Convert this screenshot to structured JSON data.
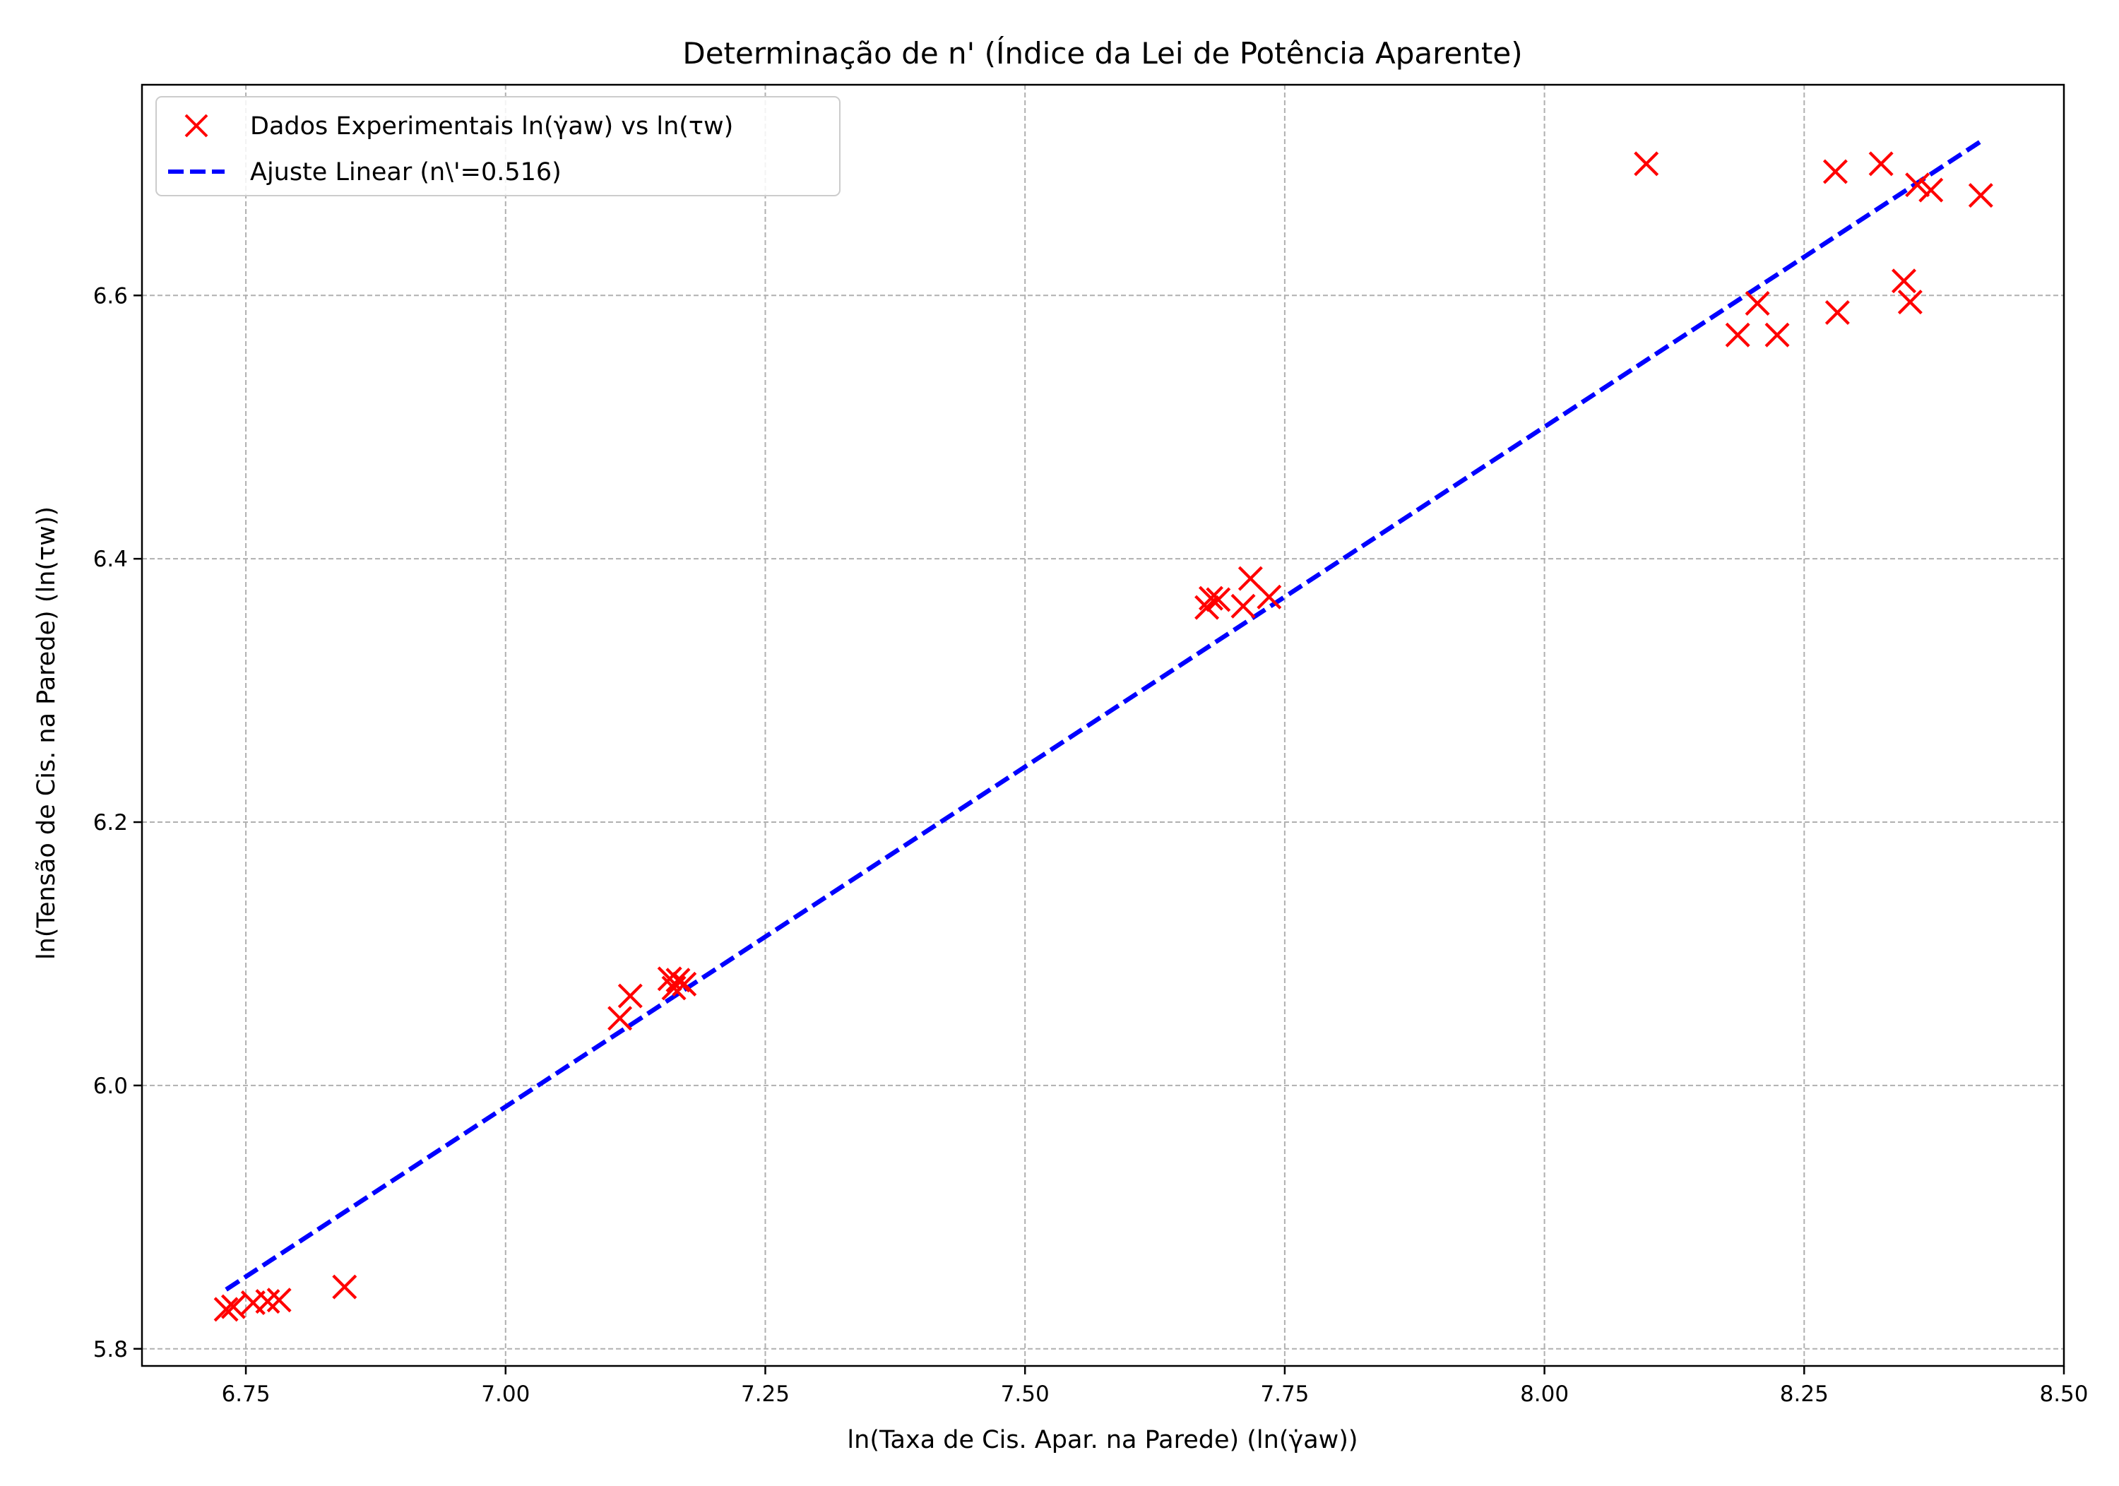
{
  "chart_data": {
    "type": "scatter",
    "title": "Determinação de n' (Índice da Lei de Potência Aparente)",
    "xlabel": "ln(Taxa de Cis. Apar. na Parede) (ln(γ̇aw))",
    "ylabel": "ln(Tensão de Cis. na Parede) (ln(τw))",
    "xlim": [
      6.65,
      8.5
    ],
    "ylim": [
      5.787,
      6.76
    ],
    "xticks": [
      6.75,
      7.0,
      7.25,
      7.5,
      7.75,
      8.0,
      8.25,
      8.5
    ],
    "xtick_labels": [
      "6.75",
      "7.00",
      "7.25",
      "7.50",
      "7.75",
      "8.00",
      "8.25",
      "8.50"
    ],
    "yticks": [
      5.8,
      6.0,
      6.2,
      6.4,
      6.6
    ],
    "ytick_labels": [
      "5.8",
      "6.0",
      "6.2",
      "6.4",
      "6.6"
    ],
    "grid": true,
    "legend_position": "top-left",
    "series": [
      {
        "name": "Dados Experimentais ln(γ̇aw) vs ln(τw)",
        "kind": "scatter",
        "marker": "x",
        "color": "#ff0000",
        "points": [
          [
            6.731,
            5.83
          ],
          [
            6.738,
            5.832
          ],
          [
            6.757,
            5.835
          ],
          [
            6.771,
            5.836
          ],
          [
            6.782,
            5.837
          ],
          [
            6.845,
            5.847
          ],
          [
            7.11,
            6.051
          ],
          [
            7.12,
            6.068
          ],
          [
            7.158,
            6.081
          ],
          [
            7.162,
            6.074
          ],
          [
            7.166,
            6.08
          ],
          [
            7.172,
            6.077
          ],
          [
            7.675,
            6.363
          ],
          [
            7.679,
            6.37
          ],
          [
            7.686,
            6.369
          ],
          [
            7.71,
            6.364
          ],
          [
            7.717,
            6.385
          ],
          [
            7.735,
            6.371
          ],
          [
            8.098,
            6.7
          ],
          [
            8.186,
            6.57
          ],
          [
            8.205,
            6.594
          ],
          [
            8.224,
            6.57
          ],
          [
            8.28,
            6.694
          ],
          [
            8.282,
            6.587
          ],
          [
            8.324,
            6.7
          ],
          [
            8.346,
            6.611
          ],
          [
            8.352,
            6.595
          ],
          [
            8.359,
            6.684
          ],
          [
            8.372,
            6.68
          ],
          [
            8.42,
            6.676
          ]
        ]
      },
      {
        "name": "Ajuste Linear (n\\'=0.516)",
        "kind": "line",
        "style": "dashed",
        "color": "#0000ff",
        "x": [
          6.731,
          8.42
        ],
        "y": [
          5.845,
          6.717
        ]
      }
    ]
  }
}
